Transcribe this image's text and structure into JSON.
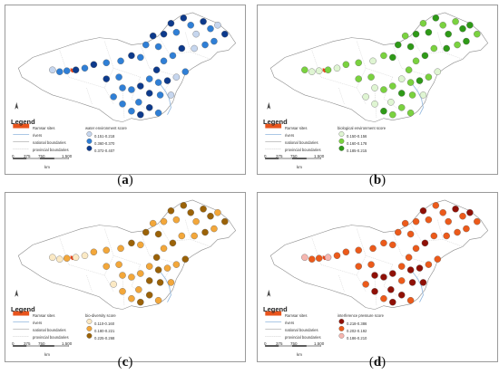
{
  "legend": {
    "title": "Legend",
    "ramsar": "Ramsar  sites",
    "rivers": "rivers",
    "national": "national boundaries",
    "provincial": "provincial boundaries"
  },
  "scale": {
    "ticks": [
      "0",
      "375",
      "750",
      "1,500"
    ],
    "unit": "km"
  },
  "panels": [
    {
      "caption": "a",
      "score_title": "water environment score",
      "classes": [
        "0.151-0.218",
        "0.360-0.370",
        "0.372-0.407"
      ],
      "colors": [
        "#c6d6ee",
        "#2f7fd6",
        "#0d3a8c"
      ]
    },
    {
      "caption": "b",
      "score_title": "biological environment score",
      "classes": [
        "0.150-0.156",
        "0.160-0.178",
        "0.185-0.215"
      ],
      "colors": [
        "#dff5d2",
        "#7ad23f",
        "#2e9a17"
      ]
    },
    {
      "caption": "c",
      "score_title": "bio-diversity score",
      "classes": [
        "0.110-0.160",
        "0.180-0.221",
        "0.225-0.268"
      ],
      "colors": [
        "#fbe9c4",
        "#f3a73a",
        "#9b6207"
      ]
    },
    {
      "caption": "d",
      "score_title": "interference pressure score",
      "classes": [
        "0.218-0.386",
        "0.202-0.192",
        "0.186-0.210"
      ],
      "colors": [
        "#8f1006",
        "#ec5a1a",
        "#f6b6b0"
      ]
    }
  ]
}
